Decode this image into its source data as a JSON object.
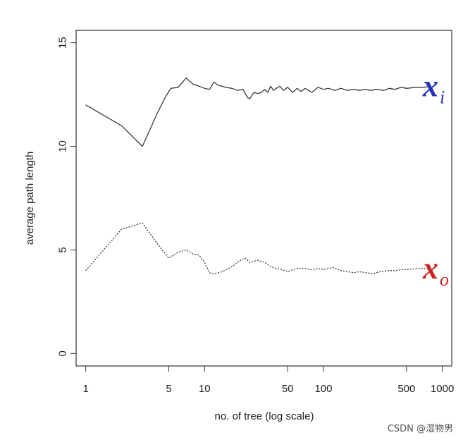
{
  "chart_data": {
    "type": "line",
    "title": "",
    "xlabel": "no. of tree (log scale)",
    "ylabel": "average path length",
    "x_scale": "log",
    "xlim": [
      0.83,
      1200
    ],
    "ylim": [
      -0.6,
      15.6
    ],
    "x_ticks": [
      1,
      5,
      10,
      50,
      100,
      500,
      1000
    ],
    "x_tick_labels": [
      "1",
      "5",
      "10",
      "50",
      "100",
      "500",
      "1000"
    ],
    "y_ticks": [
      0,
      5,
      10,
      15
    ],
    "y_tick_labels": [
      "0",
      "5",
      "10",
      "15"
    ],
    "grid": false,
    "legend": "none",
    "series": [
      {
        "label": {
          "main": "x",
          "sub": "i"
        },
        "color": "#3a3a3a",
        "label_color": "#2233bb",
        "line_style": "solid",
        "points": [
          [
            1,
            12.0
          ],
          [
            2,
            11.0
          ],
          [
            3,
            10.0
          ],
          [
            4,
            11.6
          ],
          [
            4.7,
            12.4
          ],
          [
            5.2,
            12.8
          ],
          [
            6,
            12.85
          ],
          [
            7,
            13.3
          ],
          [
            8,
            13.0
          ],
          [
            9,
            12.9
          ],
          [
            10,
            12.8
          ],
          [
            11,
            12.75
          ],
          [
            12,
            13.1
          ],
          [
            13,
            12.95
          ],
          [
            14,
            12.9
          ],
          [
            15,
            12.85
          ],
          [
            17,
            12.8
          ],
          [
            19,
            12.7
          ],
          [
            21,
            12.75
          ],
          [
            23,
            12.35
          ],
          [
            24,
            12.3
          ],
          [
            26,
            12.6
          ],
          [
            28,
            12.55
          ],
          [
            30,
            12.6
          ],
          [
            32,
            12.75
          ],
          [
            34,
            12.6
          ],
          [
            36,
            12.9
          ],
          [
            38,
            12.7
          ],
          [
            40,
            12.8
          ],
          [
            43,
            12.9
          ],
          [
            46,
            12.7
          ],
          [
            50,
            12.85
          ],
          [
            55,
            12.6
          ],
          [
            60,
            12.8
          ],
          [
            65,
            12.65
          ],
          [
            70,
            12.8
          ],
          [
            80,
            12.6
          ],
          [
            90,
            12.85
          ],
          [
            100,
            12.75
          ],
          [
            110,
            12.8
          ],
          [
            125,
            12.7
          ],
          [
            140,
            12.8
          ],
          [
            160,
            12.7
          ],
          [
            180,
            12.75
          ],
          [
            200,
            12.7
          ],
          [
            225,
            12.75
          ],
          [
            250,
            12.7
          ],
          [
            280,
            12.75
          ],
          [
            320,
            12.7
          ],
          [
            360,
            12.8
          ],
          [
            400,
            12.75
          ],
          [
            450,
            12.85
          ],
          [
            500,
            12.8
          ],
          [
            600,
            12.85
          ],
          [
            700,
            12.85
          ],
          [
            800,
            12.9
          ]
        ]
      },
      {
        "label": {
          "main": "x",
          "sub": "o"
        },
        "color": "#3a3a3a",
        "label_color": "#cc2222",
        "line_style": "dotted",
        "points": [
          [
            1,
            4.0
          ],
          [
            2,
            6.0
          ],
          [
            3,
            6.3
          ],
          [
            4,
            5.3
          ],
          [
            5,
            4.6
          ],
          [
            6,
            4.9
          ],
          [
            7,
            5.0
          ],
          [
            8,
            4.8
          ],
          [
            9,
            4.75
          ],
          [
            10,
            4.4
          ],
          [
            11,
            3.9
          ],
          [
            12,
            3.85
          ],
          [
            14,
            3.95
          ],
          [
            16,
            4.1
          ],
          [
            18,
            4.3
          ],
          [
            20,
            4.5
          ],
          [
            22,
            4.6
          ],
          [
            24,
            4.4
          ],
          [
            26,
            4.45
          ],
          [
            28,
            4.5
          ],
          [
            32,
            4.4
          ],
          [
            36,
            4.2
          ],
          [
            40,
            4.1
          ],
          [
            45,
            4.05
          ],
          [
            50,
            3.95
          ],
          [
            55,
            4.05
          ],
          [
            60,
            4.1
          ],
          [
            70,
            4.1
          ],
          [
            80,
            4.05
          ],
          [
            90,
            4.1
          ],
          [
            100,
            4.05
          ],
          [
            120,
            4.15
          ],
          [
            140,
            4.0
          ],
          [
            160,
            3.95
          ],
          [
            180,
            3.9
          ],
          [
            200,
            3.95
          ],
          [
            230,
            3.9
          ],
          [
            260,
            3.85
          ],
          [
            300,
            3.95
          ],
          [
            350,
            4.0
          ],
          [
            400,
            4.0
          ],
          [
            450,
            4.05
          ],
          [
            500,
            4.05
          ],
          [
            600,
            4.1
          ],
          [
            700,
            4.1
          ],
          [
            800,
            4.1
          ]
        ]
      }
    ]
  },
  "watermark": "CSDN @湿物男"
}
